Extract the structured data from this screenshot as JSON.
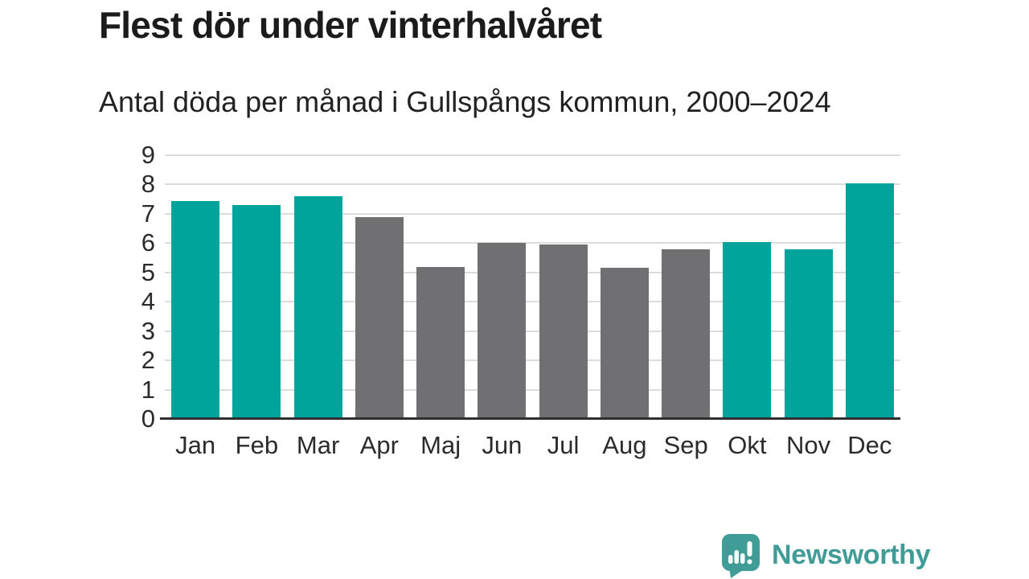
{
  "header": {
    "title": "Flest dör under vinterhalvåret",
    "subtitle": "Antal döda per månad i Gullspångs kommun, 2000–2024"
  },
  "chart_data": {
    "type": "bar",
    "title": "Flest dör under vinterhalvåret",
    "subtitle": "Antal döda per månad i Gullspångs kommun, 2000–2024",
    "categories": [
      "Jan",
      "Feb",
      "Mar",
      "Apr",
      "Maj",
      "Jun",
      "Jul",
      "Aug",
      "Sep",
      "Okt",
      "Nov",
      "Dec"
    ],
    "values": [
      7.45,
      7.3,
      7.6,
      6.9,
      5.2,
      6.0,
      5.95,
      5.15,
      5.8,
      6.05,
      5.8,
      8.05
    ],
    "highlighted_categories": [
      "Jan",
      "Feb",
      "Mar",
      "Okt",
      "Nov",
      "Dec"
    ],
    "xlabel": "",
    "ylabel": "",
    "ylim": [
      0,
      9
    ],
    "yticks": [
      0,
      1,
      2,
      3,
      4,
      5,
      6,
      7,
      8,
      9
    ],
    "grid": true,
    "legend": false,
    "colors": {
      "highlight": "#00a49a",
      "muted": "#707073",
      "gridline": "#dcdcdc",
      "axis_line": "#2f2f2f",
      "tick_text": "#2b2b2b"
    }
  },
  "brand": {
    "name": "Newsworthy",
    "icon": "newsworthy-speech-bubble-bar-chart-icon",
    "color": "#3f9c97"
  }
}
